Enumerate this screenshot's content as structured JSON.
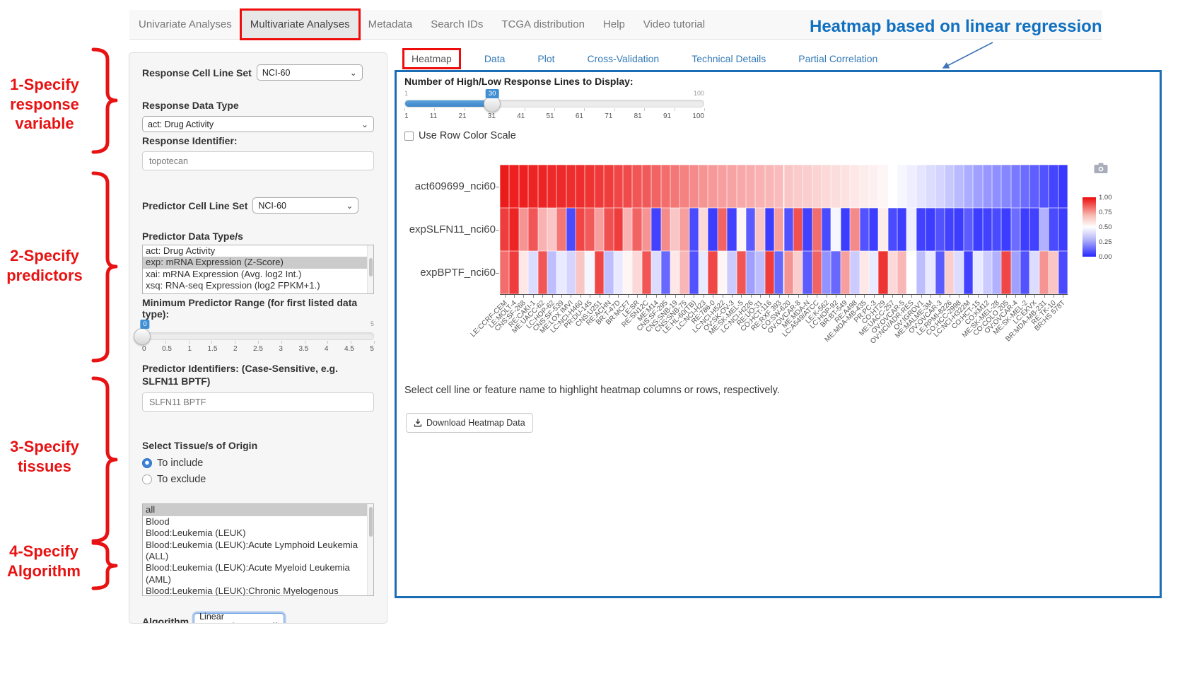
{
  "topnav": {
    "items": [
      {
        "label": "Univariate Analyses",
        "active": false
      },
      {
        "label": "Multivariate Analyses",
        "active": true
      },
      {
        "label": "Metadata",
        "active": false
      },
      {
        "label": "Search IDs",
        "active": false
      },
      {
        "label": "TCGA distribution",
        "active": false
      },
      {
        "label": "Help",
        "active": false
      },
      {
        "label": "Video tutorial",
        "active": false
      }
    ]
  },
  "annotations": {
    "heading": "Heatmap based on linear regression",
    "heading_color": "#1170c0",
    "accent_red": "#e81212",
    "steps": [
      "1-Specify response variable",
      "2-Specify predictors",
      "3-Specify tissues",
      "4-Specify Algorithm"
    ]
  },
  "form": {
    "response_cell_line_set": {
      "label": "Response Cell Line Set",
      "value": "NCI-60"
    },
    "response_data_type": {
      "label": "Response Data Type",
      "value": "act: Drug Activity"
    },
    "response_identifier": {
      "label": "Response Identifier:",
      "value": "topotecan"
    },
    "predictor_cell_line_set": {
      "label": "Predictor Cell Line Set",
      "value": "NCI-60"
    },
    "predictor_data_types": {
      "label": "Predictor Data Type/s",
      "options": [
        "act: Drug Activity",
        "exp: mRNA Expression (Z-Score)",
        "xai: mRNA Expression (Avg. log2 Int.)",
        "xsq: RNA-seq Expression (log2 FPKM+1.)"
      ],
      "selected_index": 1
    },
    "min_predictor_range": {
      "label": "Minimum Predictor Range (for first listed data type):",
      "value": "0",
      "value_num": 0,
      "min": 0,
      "max": 5,
      "max_label": "5",
      "ticks": [
        "0",
        "0.5",
        "1",
        "1.5",
        "2",
        "2.5",
        "3",
        "3.5",
        "4",
        "4.5",
        "5"
      ]
    },
    "predictor_identifiers": {
      "label": "Predictor Identifiers: (Case-Sensitive, e.g. SLFN11 BPTF)",
      "value": "SLFN11 BPTF"
    },
    "tissue": {
      "label": "Select Tissue/s of Origin",
      "radio_include": "To include",
      "radio_exclude": "To exclude",
      "include_selected": true,
      "options": [
        "all",
        "Blood",
        "Blood:Leukemia (LEUK)",
        "Blood:Leukemia (LEUK):Acute Lymphoid Leukemia (ALL)",
        "Blood:Leukemia (LEUK):Acute Myeloid Leukemia (AML)",
        "Blood:Leukemia (LEUK):Chronic Myelogenous Leukemia (CML)"
      ],
      "selected_index": 0
    },
    "algorithm": {
      "label": "Algorithm",
      "value": "Linear Regression"
    }
  },
  "tabs": [
    {
      "label": "Heatmap",
      "active": true
    },
    {
      "label": "Data",
      "active": false
    },
    {
      "label": "Plot",
      "active": false
    },
    {
      "label": "Cross-Validation",
      "active": false
    },
    {
      "label": "Technical Details",
      "active": false
    },
    {
      "label": "Partial Correlation",
      "active": false
    }
  ],
  "panel": {
    "slider": {
      "label": "Number of High/Low Response Lines to Display:",
      "min_label": "1",
      "max_label": "100",
      "value": "30",
      "value_num": 30,
      "min": 1,
      "max": 100,
      "ticks": [
        "1",
        "11",
        "21",
        "31",
        "41",
        "51",
        "61",
        "71",
        "81",
        "91",
        "100"
      ]
    },
    "row_color_scale_label": "Use Row Color Scale",
    "row_color_scale_checked": false,
    "hint": "Select cell line or feature name to highlight heatmap columns or rows, respectively.",
    "download_label": "Download Heatmap Data"
  },
  "icons": {
    "chevron_down": "⌄",
    "camera": "camera-icon",
    "download": "download-icon"
  },
  "chart_data": {
    "type": "heatmap",
    "rows": [
      "act609699_nci60",
      "expSLFN11_nci60",
      "expBPTF_nci60"
    ],
    "columns": [
      "LE:CCRF-CEM",
      "LE:MOLT-4",
      "CNS:SF-268",
      "RE:CAKI-1",
      "ME:UACC-62",
      "LC:HOP-62",
      "CNS:SF-539",
      "ME:LOX IMVI",
      "LC:NCI-H460",
      "PR:DU-145",
      "CNS:U251",
      "RE:ACHN",
      "BR:T-47D",
      "BR:MCF7",
      "LE:SR",
      "RE:SN12C",
      "ME:M14",
      "CNS:SF-295",
      "CNS:SNB-19",
      "CNS:SNB-75",
      "LE:HL-60(TB)",
      "LC:NCI-H23",
      "RE:786-0",
      "LC:NCI-H522",
      "OV:SK-OV-3",
      "ME:SK-MEL-5",
      "LC:NCI-H226",
      "RE:UO-31",
      "CO:HCT-116",
      "RE:RXF 393",
      "CO:SW-620",
      "OV:OVCAR-8",
      "ME:MDA-N",
      "LC:A549/ATCC",
      "LE:K-562",
      "LC:HOP-92",
      "BR:BT-549",
      "RE:A498",
      "ME:MDA-MB-435",
      "PR:PC-3",
      "CO:HT29",
      "ME:UACC-257",
      "OV:OVCAR-5",
      "OV:NCI/ADR-RES",
      "OV:IGROV1",
      "ME:MALME-3M",
      "OV:OVCAR-3",
      "LE:RPMI-8226",
      "CO:HCC-2998",
      "LC:NCI-H322M",
      "CO:HCT-15",
      "CO:KM12",
      "ME:SK-MEL-28",
      "CO:COLO 205",
      "OV:OVCAR-4",
      "ME:SK-MEL-2",
      "LC:EKVX",
      "BR:MDA-MB-231",
      "RE:TK-10",
      "BR:HS 578T"
    ],
    "values": [
      [
        0.97,
        0.96,
        0.96,
        0.95,
        0.95,
        0.94,
        0.94,
        0.93,
        0.93,
        0.92,
        0.91,
        0.9,
        0.88,
        0.87,
        0.85,
        0.84,
        0.82,
        0.8,
        0.78,
        0.76,
        0.74,
        0.72,
        0.71,
        0.7,
        0.69,
        0.68,
        0.67,
        0.66,
        0.65,
        0.64,
        0.62,
        0.61,
        0.6,
        0.59,
        0.58,
        0.57,
        0.56,
        0.55,
        0.54,
        0.53,
        0.52,
        0.5,
        0.48,
        0.46,
        0.44,
        0.42,
        0.4,
        0.37,
        0.34,
        0.31,
        0.28,
        0.26,
        0.24,
        0.22,
        0.19,
        0.16,
        0.13,
        0.1,
        0.07,
        0.04
      ],
      [
        0.9,
        0.95,
        0.72,
        0.85,
        0.66,
        0.62,
        0.78,
        0.08,
        0.88,
        0.84,
        0.7,
        0.86,
        0.9,
        0.66,
        0.82,
        0.72,
        0.06,
        0.74,
        0.62,
        0.7,
        0.08,
        0.58,
        0.05,
        0.82,
        0.06,
        0.52,
        0.12,
        0.62,
        0.05,
        0.7,
        0.1,
        0.86,
        0.06,
        0.8,
        0.08,
        0.48,
        0.05,
        0.74,
        0.1,
        0.05,
        0.54,
        0.08,
        0.05,
        0.46,
        0.06,
        0.05,
        0.1,
        0.06,
        0.05,
        0.12,
        0.05,
        0.06,
        0.08,
        0.05,
        0.16,
        0.05,
        0.06,
        0.32,
        0.08,
        0.05
      ],
      [
        0.8,
        0.9,
        0.55,
        0.42,
        0.85,
        0.35,
        0.45,
        0.4,
        0.62,
        0.48,
        0.88,
        0.35,
        0.45,
        0.52,
        0.58,
        0.85,
        0.42,
        0.15,
        0.55,
        0.65,
        0.1,
        0.45,
        0.88,
        0.52,
        0.38,
        0.85,
        0.28,
        0.35,
        0.9,
        0.15,
        0.72,
        0.6,
        0.12,
        0.82,
        0.25,
        0.15,
        0.7,
        0.38,
        0.55,
        0.45,
        0.92,
        0.58,
        0.65,
        0.5,
        0.35,
        0.45,
        0.12,
        0.6,
        0.42,
        0.06,
        0.45,
        0.38,
        0.32,
        0.88,
        0.28,
        0.1,
        0.42,
        0.72,
        0.62,
        0.08
      ]
    ],
    "value_range": [
      0,
      1
    ],
    "colorbar": {
      "ticks": [
        "1.00",
        "0.75",
        "0.50",
        "0.25",
        "0.00"
      ],
      "max_color": "#eb0c0c",
      "mid_color": "#ffffff",
      "min_color": "#2727ff"
    },
    "x_tick_angle": -45,
    "legend_position": "right"
  }
}
